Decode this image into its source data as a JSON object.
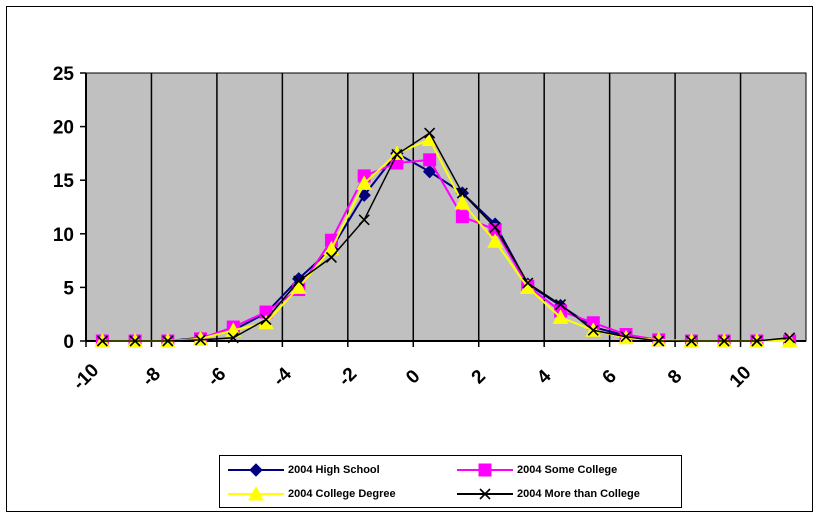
{
  "chart_data": {
    "type": "line",
    "title": "",
    "xlabel": "",
    "ylabel": "",
    "x": [
      -9.5,
      -8.5,
      -7.5,
      -6.5,
      -5.5,
      -4.5,
      -3.5,
      -2.5,
      -1.5,
      -0.5,
      0.5,
      1.5,
      2.5,
      3.5,
      4.5,
      5.5,
      6.5,
      7.5,
      8.5,
      9.5,
      10.5,
      11.5
    ],
    "xlim": [
      -10,
      12
    ],
    "ylim": [
      0,
      25
    ],
    "x_ticks": [
      -10,
      -8,
      -6,
      -4,
      -2,
      0,
      2,
      4,
      6,
      8,
      10
    ],
    "x_tick_labels": [
      "-10",
      "-8",
      "-6",
      "-4",
      "-2",
      "0",
      "2",
      "4",
      "6",
      "8",
      "10"
    ],
    "y_ticks": [
      0,
      5,
      10,
      15,
      20,
      25
    ],
    "y_tick_labels": [
      "0",
      "5",
      "10",
      "15",
      "20",
      "25"
    ],
    "grid": "vertical",
    "plot_background": "#c0c0c0",
    "legend_position": "bottom",
    "series": [
      {
        "name": "2004 High School",
        "color": "#000080",
        "marker": "diamond",
        "values": [
          0,
          0,
          0,
          0.3,
          1.0,
          2.6,
          5.8,
          8.6,
          13.6,
          17.5,
          15.8,
          13.8,
          10.9,
          5.3,
          3.3,
          1.3,
          0.5,
          0.1,
          0,
          0,
          0,
          0
        ]
      },
      {
        "name": "2004 Some College",
        "color": "#ff00ff",
        "marker": "square",
        "values": [
          0,
          0,
          0,
          0.2,
          1.3,
          2.7,
          4.8,
          9.4,
          15.4,
          16.6,
          16.9,
          11.6,
          10.4,
          5.1,
          2.8,
          1.7,
          0.6,
          0.1,
          0,
          0,
          0,
          0
        ]
      },
      {
        "name": "2004 College Degree",
        "color": "#ffff00",
        "marker": "triangle",
        "values": [
          0,
          0,
          0,
          0.2,
          1.0,
          1.7,
          5.0,
          8.6,
          14.7,
          17.5,
          18.8,
          12.9,
          9.3,
          5.0,
          2.2,
          1.0,
          0.3,
          0.1,
          0,
          0,
          0,
          0
        ]
      },
      {
        "name": "2004 More than College",
        "color": "#000000",
        "marker": "x",
        "values": [
          0,
          0,
          0,
          0.1,
          0.3,
          2.0,
          5.6,
          7.8,
          11.3,
          17.4,
          19.4,
          13.8,
          10.6,
          5.4,
          3.4,
          1.0,
          0.4,
          0,
          0,
          0,
          0,
          0.3
        ]
      }
    ]
  }
}
